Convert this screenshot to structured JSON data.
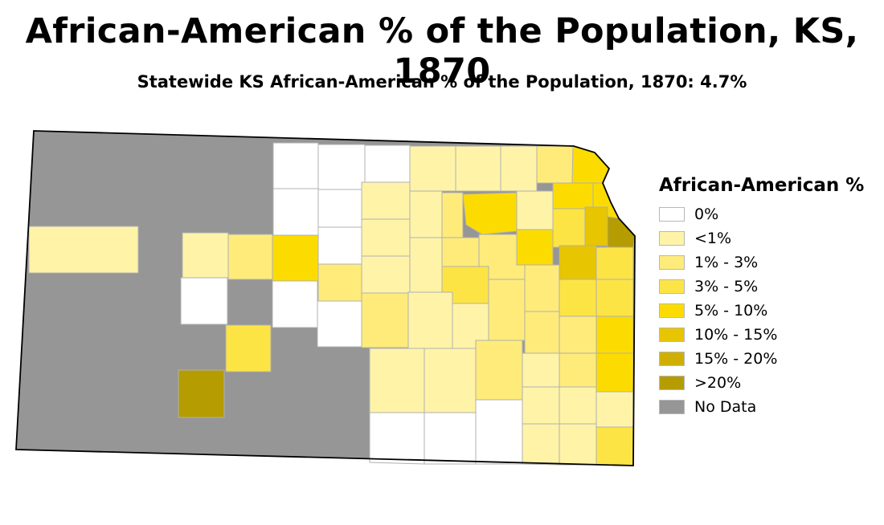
{
  "title": "African-American % of the Population, KS, 1870",
  "subtitle": "Statewide KS African-American % of the Population, 1870: 4.7%",
  "legend": {
    "title": "African-American %",
    "items": [
      {
        "label": "0%",
        "color": "#ffffff"
      },
      {
        "label": "<1%",
        "color": "#fff3a8"
      },
      {
        "label": "1% - 3%",
        "color": "#feeb7a"
      },
      {
        "label": "3% - 5%",
        "color": "#fde445"
      },
      {
        "label": "5% - 10%",
        "color": "#fcdc00"
      },
      {
        "label": "10% - 15%",
        "color": "#e7c500"
      },
      {
        "label": "15% - 20%",
        "color": "#cfb000"
      },
      {
        "label": ">20%",
        "color": "#b59c00"
      },
      {
        "label": "No Data",
        "color": "#969696"
      }
    ]
  }
}
